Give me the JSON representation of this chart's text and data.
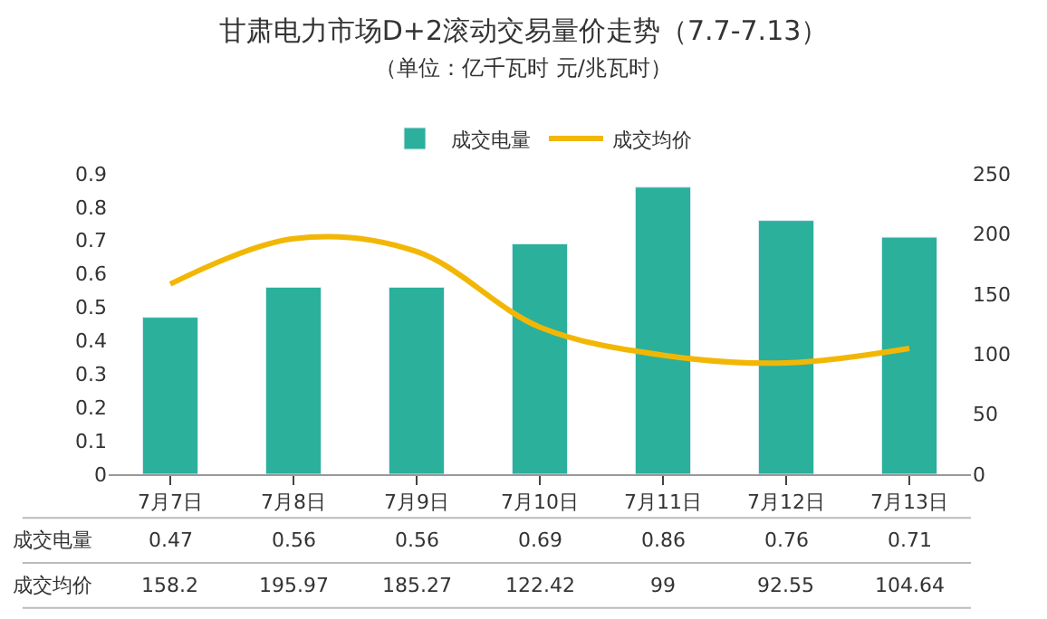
{
  "chart_data": {
    "type": "bar",
    "title": "甘肃电力市场D+2滚动交易量价走势（7.7-7.13）",
    "subtitle": "（单位：亿千瓦时 元/兆瓦时）",
    "categories": [
      "7月7日",
      "7月8日",
      "7月9日",
      "7月10日",
      "7月11日",
      "7月12日",
      "7月13日"
    ],
    "series": [
      {
        "name": "成交电量",
        "color": "#2bb09c",
        "values": [
          0.47,
          0.56,
          0.56,
          0.69,
          0.86,
          0.76,
          0.71
        ]
      },
      {
        "name": "成交均价",
        "type": "line",
        "axis": "y2",
        "color": "#f2b705",
        "values": [
          158.2,
          195.97,
          185.27,
          122.42,
          99,
          92.55,
          104.64
        ],
        "marker": "none",
        "line_style": "solid"
      }
    ],
    "ylim": [
      0,
      0.9
    ],
    "yticks": [
      0,
      0.1,
      0.2,
      0.3,
      0.4,
      0.5,
      0.6,
      0.7,
      0.8,
      0.9
    ],
    "y2lim": [
      0,
      250
    ],
    "y2ticks": [
      0,
      50,
      100,
      150,
      200,
      250
    ],
    "data_labels": true,
    "legend": "top"
  }
}
